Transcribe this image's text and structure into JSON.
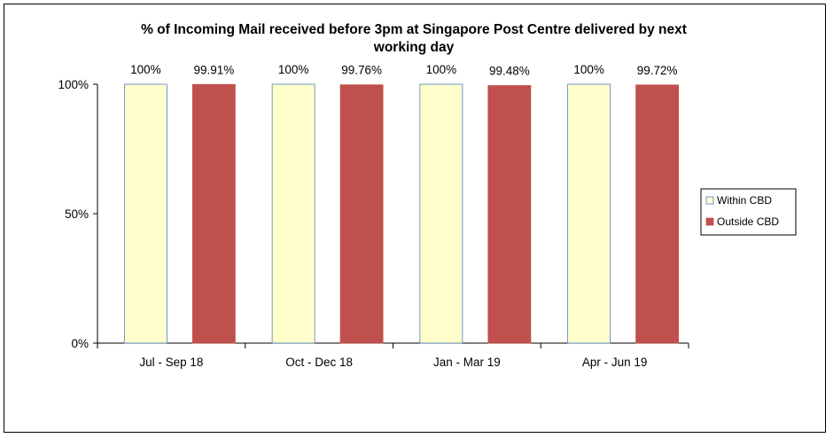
{
  "chart_data": {
    "type": "bar",
    "title_lines": [
      "% of Incoming Mail received before 3pm at Singapore Post Centre delivered by next",
      "working day"
    ],
    "categories": [
      "Jul - Sep 18",
      "Oct - Dec 18",
      "Jan - Mar 19",
      "Apr - Jun 19"
    ],
    "series": [
      {
        "name": "Within CBD",
        "values": [
          100,
          100,
          100,
          100
        ],
        "labels": [
          "100%",
          "100%",
          "100%",
          "100%"
        ],
        "color": "#FFFFCC",
        "border": "#4F81BD"
      },
      {
        "name": "Outside CBD",
        "values": [
          99.91,
          99.76,
          99.48,
          99.72
        ],
        "labels": [
          "99.91%",
          "99.76%",
          "99.48%",
          "99.72%"
        ],
        "color": "#C0504D",
        "border": "#C0504D"
      }
    ],
    "ylim": [
      0,
      100
    ],
    "yticks": [
      0,
      50,
      100
    ],
    "ytick_labels": [
      "0%",
      "50%",
      "100%"
    ],
    "grid": false,
    "legend_position": "right"
  }
}
